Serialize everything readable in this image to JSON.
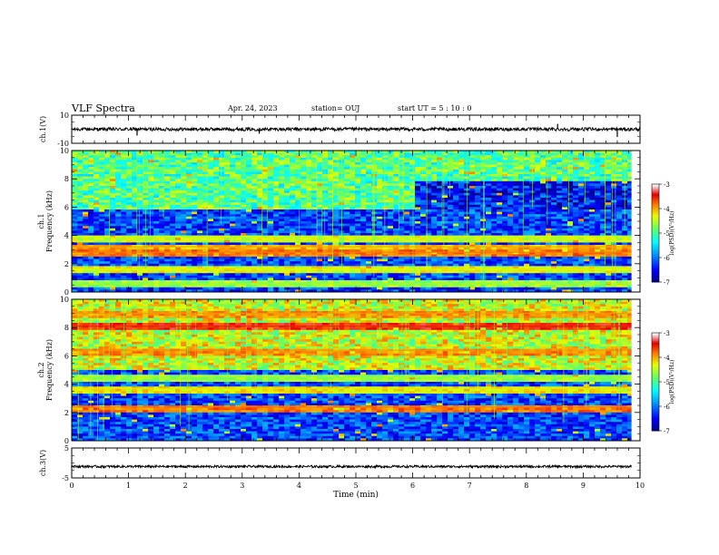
{
  "header": {
    "title": "VLF Spectra",
    "date": "Apr. 24, 2023",
    "station": "station= OUJ",
    "start": "start  UT =   5 : 10 : 0"
  },
  "colors": {
    "background": "#ffffff",
    "axes": "#000000",
    "spectrogram_low": "#000080",
    "spectrogram_high": "#ffffff"
  },
  "chart_data": [
    {
      "id": "ch1-waveform",
      "type": "line",
      "ylabel": "ch.1(V)",
      "ylim": [
        -10,
        10
      ],
      "y_ticks": [
        "10",
        "-10"
      ],
      "x_range": [
        0,
        10
      ],
      "mean": 0,
      "noise_amplitude": 1.2,
      "spikes": [
        {
          "x": 1.15,
          "y": -4.5
        },
        {
          "x": 3.3,
          "y": -3.2
        },
        {
          "x": 8.55,
          "y": 3.8
        },
        {
          "x": 9.6,
          "y": -5.5
        }
      ]
    },
    {
      "id": "ch1-spectrogram",
      "type": "heatmap",
      "ylabel": "ch.1\nFrequency (kHz)",
      "x_range": [
        0,
        9.85
      ],
      "ylim": [
        0,
        10
      ],
      "y_ticks": [
        "0",
        "2",
        "4",
        "6",
        "8",
        "10"
      ],
      "colorbar": {
        "label": "log(PSD)(V²/Hz)",
        "range": [
          -7,
          -3
        ],
        "ticks": [
          "-3",
          "-4",
          "-5",
          "-6",
          "-7"
        ]
      },
      "bands": [
        {
          "f": 2.8,
          "level": -3.8
        },
        {
          "f": 3.2,
          "level": -4.0
        },
        {
          "f": 3.9,
          "level": -4.4
        },
        {
          "f": 1.6,
          "level": -4.3
        },
        {
          "f": 0.6,
          "level": -4.6
        }
      ],
      "upper_region": {
        "f_low": 6.0,
        "level": -4.9,
        "quiet_after_t": 6.0,
        "quiet_level": -6.4
      }
    },
    {
      "id": "ch2-spectrogram",
      "type": "heatmap",
      "ylabel": "ch.2\nFrequency (kHz)",
      "x_range": [
        0,
        9.85
      ],
      "ylim": [
        0,
        10
      ],
      "y_ticks": [
        "0",
        "2",
        "4",
        "6",
        "8",
        "10"
      ],
      "colorbar": {
        "label": "log(PSD)(V²/Hz)",
        "range": [
          -7,
          -3
        ],
        "ticks": [
          "-3",
          "-4",
          "-5",
          "-6",
          "-7"
        ]
      },
      "bands": [
        {
          "f": 8.1,
          "level": -3.5
        },
        {
          "f": 9.0,
          "level": -3.9
        },
        {
          "f": 6.4,
          "level": -3.9
        },
        {
          "f": 2.4,
          "level": -3.8
        },
        {
          "f": 3.7,
          "level": -4.2
        },
        {
          "f": 4.5,
          "level": -4.6
        }
      ],
      "upper_region": {
        "f_low": 5.0,
        "level": -4.4,
        "quiet_after_t": 10.0,
        "quiet_level": -4.4
      }
    },
    {
      "id": "ch3-waveform",
      "type": "line",
      "ylabel": "ch.3(V)",
      "ylim": [
        -5,
        5
      ],
      "y_ticks": [
        "5",
        "-5"
      ],
      "x_range": [
        0,
        9.85
      ],
      "mean": -1.2,
      "noise_amplitude": 0.4
    }
  ],
  "xaxis": {
    "label": "Time (min)",
    "ticks": [
      "0",
      "1",
      "2",
      "3",
      "4",
      "5",
      "6",
      "7",
      "8",
      "9",
      "10"
    ],
    "range": [
      0,
      10
    ]
  }
}
